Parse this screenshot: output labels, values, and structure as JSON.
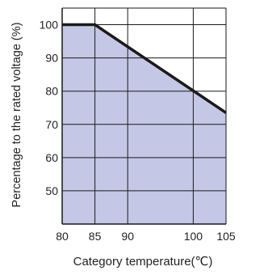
{
  "chart_data": {
    "type": "area",
    "title": "",
    "xlabel": "Category temperature(℃)",
    "ylabel": "Percentage to the rated voltage (%)",
    "xlim": [
      80,
      105
    ],
    "ylim": [
      40,
      105
    ],
    "x_ticks": [
      80,
      85,
      90,
      100,
      105
    ],
    "y_ticks": [
      50,
      60,
      70,
      80,
      90,
      100
    ],
    "x_tick_labels": [
      "80",
      "85",
      "90",
      "100",
      "105"
    ],
    "y_tick_labels": [
      "50",
      "60",
      "70",
      "80",
      "90",
      "100"
    ],
    "grid": true,
    "series": [
      {
        "x": [
          80,
          85,
          105
        ],
        "y": [
          100,
          100,
          73.5
        ]
      }
    ],
    "colors": {
      "fill": "#c5c7e6",
      "line": "#1a1a1a",
      "grid": "#1a1a1a",
      "frame": "#1a1a1a"
    }
  }
}
